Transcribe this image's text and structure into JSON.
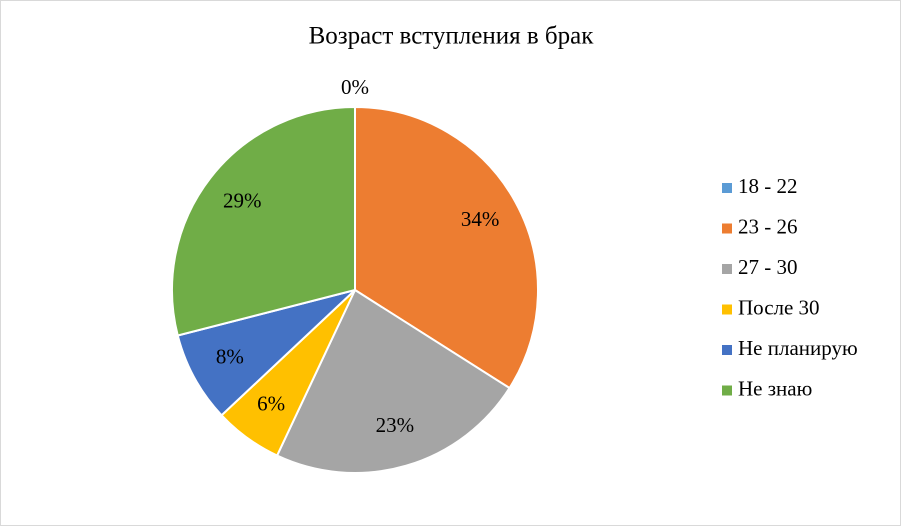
{
  "chart_data": {
    "type": "pie",
    "title": "Возраст вступления в брак",
    "categories": [
      "18 - 22",
      "23 - 26",
      "27 - 30",
      "После 30",
      "Не планирую",
      "Не знаю"
    ],
    "values": [
      0,
      34,
      23,
      6,
      8,
      29
    ],
    "value_labels": [
      "0%",
      "34%",
      "23%",
      "6%",
      "8%",
      "29%"
    ],
    "colors": [
      "#5b9bd5",
      "#ed7d31",
      "#a5a5a5",
      "#ffc000",
      "#4472c4",
      "#70ad47"
    ],
    "legend": "right"
  }
}
